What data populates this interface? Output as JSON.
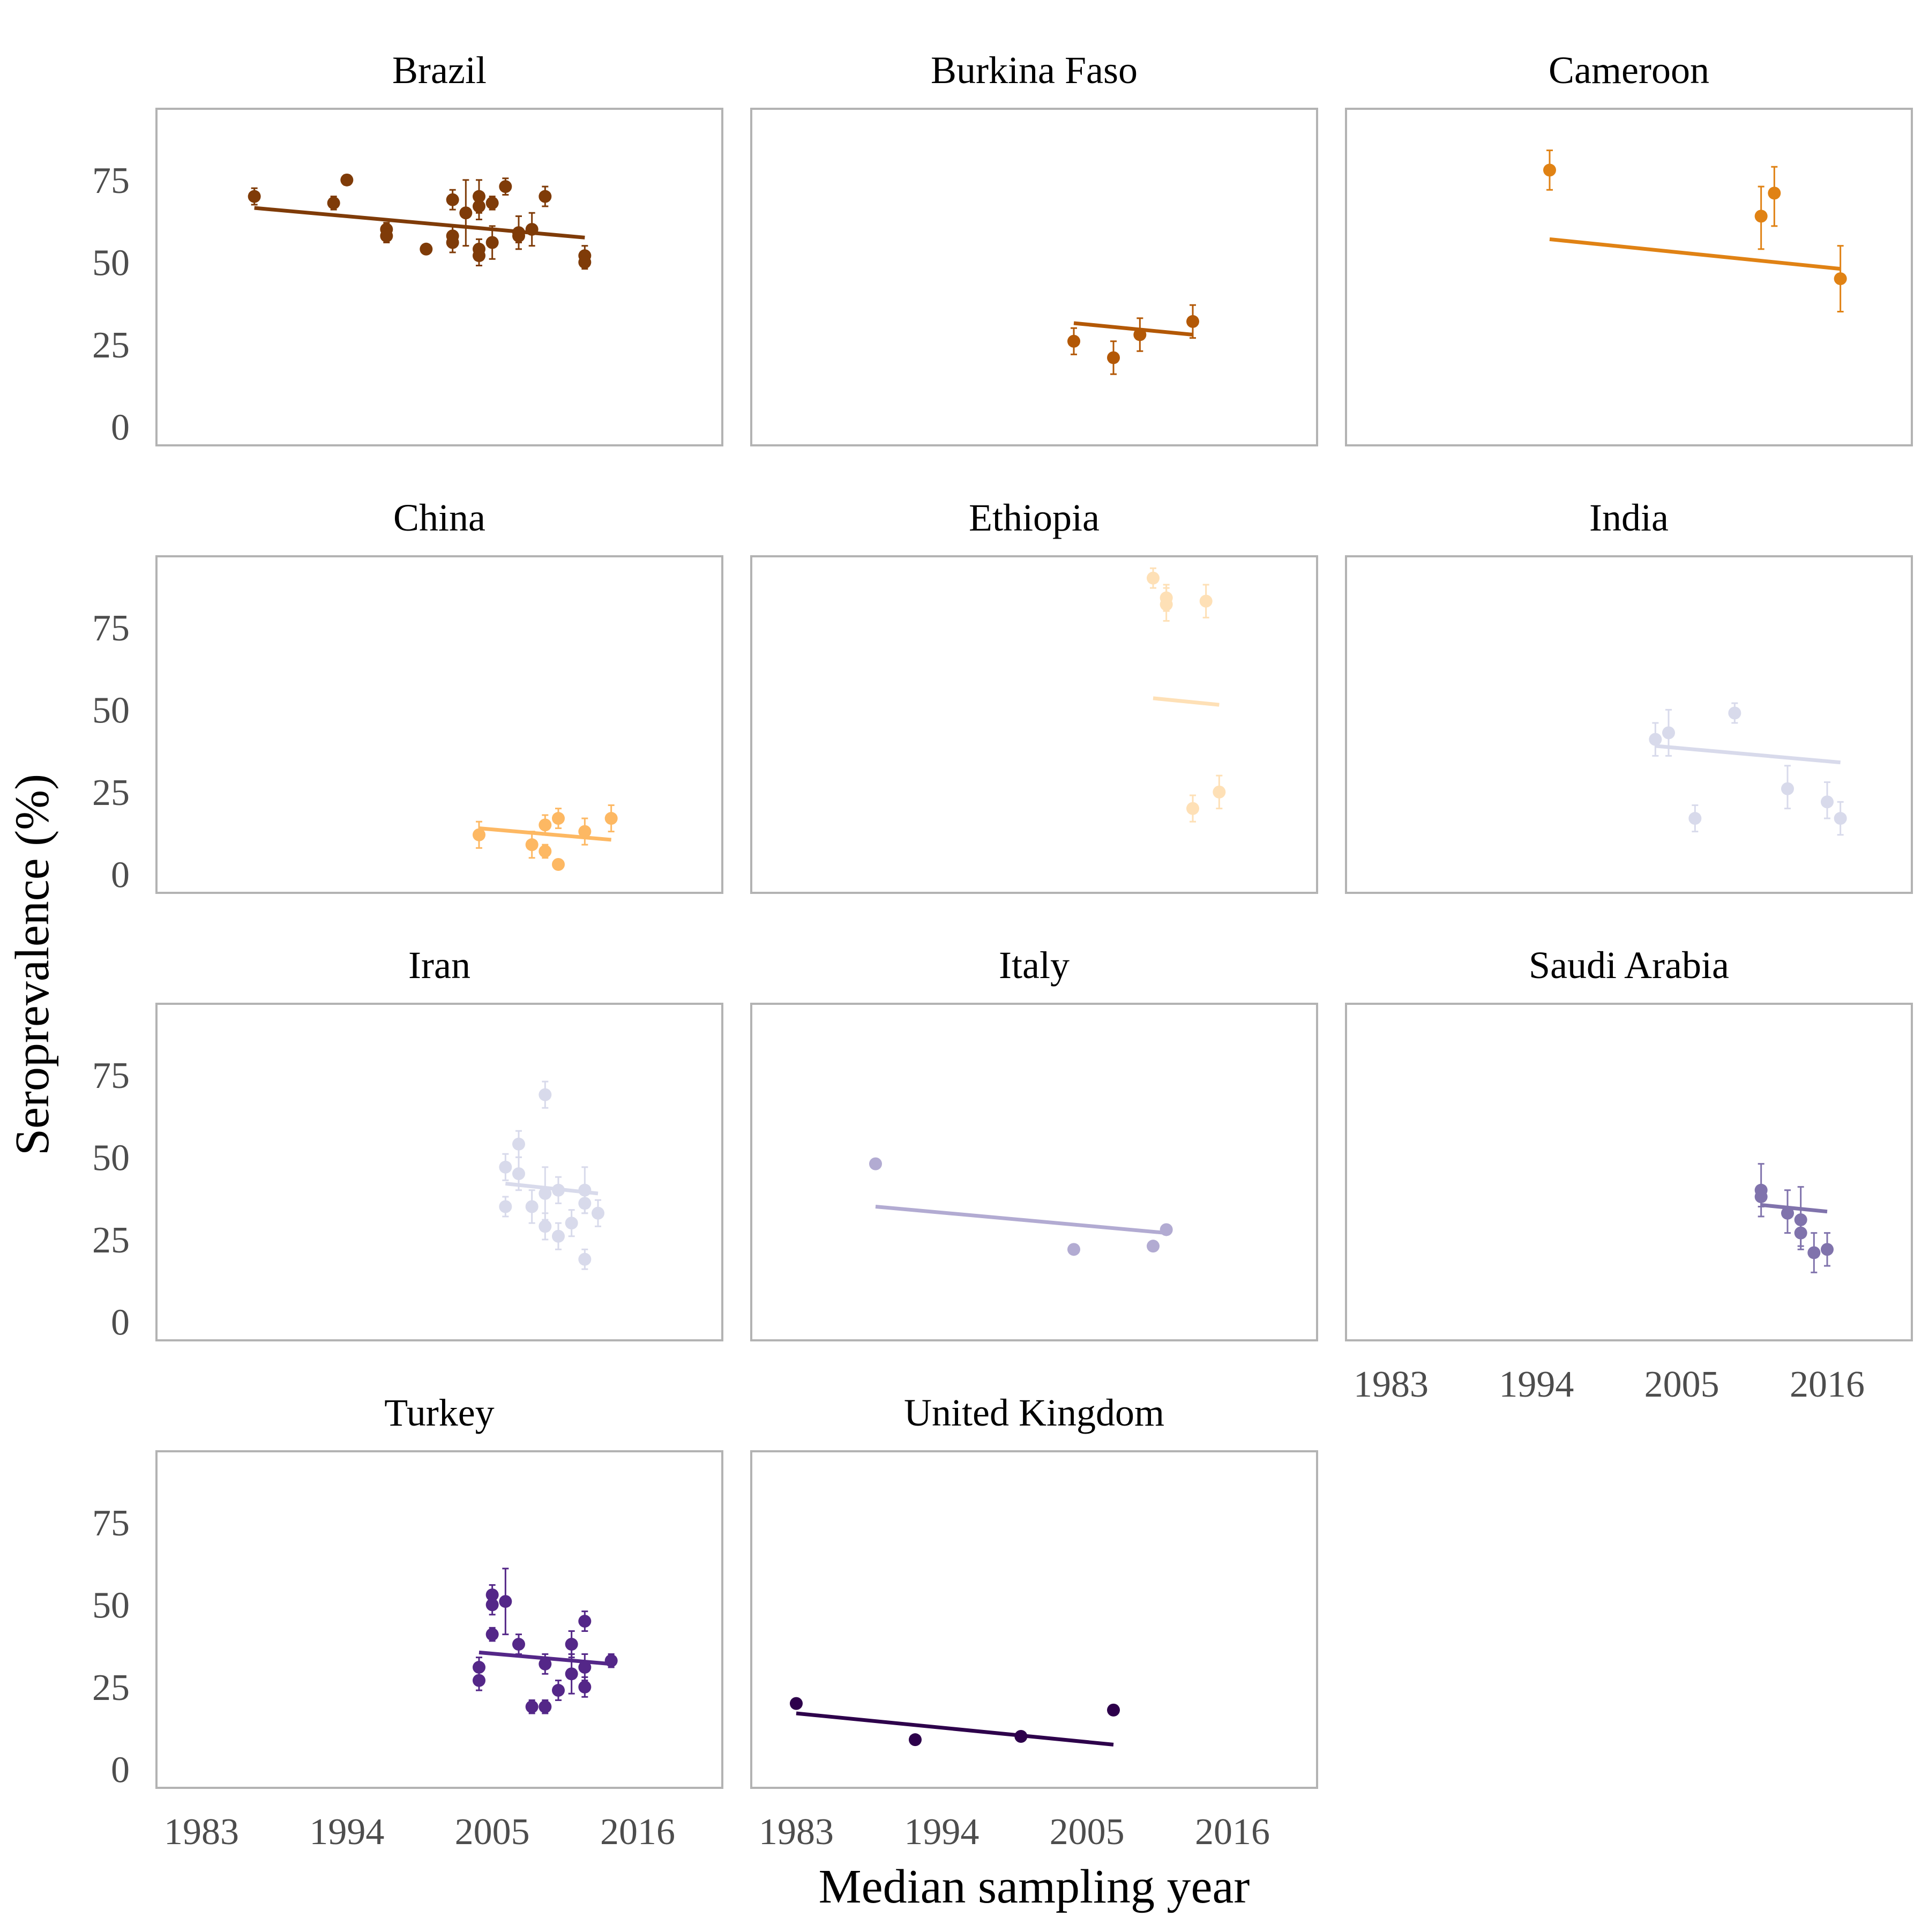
{
  "chart_data": {
    "type": "scatter",
    "xlabel": "Median sampling year",
    "ylabel": "Seroprevalence (%)",
    "x_ticks": [
      1983,
      1994,
      2005,
      2016
    ],
    "y_ticks": [
      0,
      25,
      50,
      75
    ],
    "xlim": [
      1980,
      2022
    ],
    "ylim": [
      -4,
      95
    ],
    "panels": [
      {
        "title": "Brazil",
        "color": "#7f3b08",
        "points": [
          {
            "x": 1987,
            "y": 70,
            "lo": 67.5,
            "hi": 72.5
          },
          {
            "x": 1993,
            "y": 68,
            "lo": 66,
            "hi": 70
          },
          {
            "x": 1994,
            "y": 75,
            "lo": 73.5,
            "hi": 76.5
          },
          {
            "x": 1997,
            "y": 60,
            "lo": 58,
            "hi": 62
          },
          {
            "x": 1997,
            "y": 58,
            "lo": 56,
            "hi": 60
          },
          {
            "x": 2000,
            "y": 54,
            "lo": 53,
            "hi": 55
          },
          {
            "x": 2002,
            "y": 69,
            "lo": 66,
            "hi": 72
          },
          {
            "x": 2002,
            "y": 58,
            "lo": 55,
            "hi": 61
          },
          {
            "x": 2002,
            "y": 56,
            "lo": 53,
            "hi": 59
          },
          {
            "x": 2003,
            "y": 65,
            "lo": 55,
            "hi": 75
          },
          {
            "x": 2004,
            "y": 70,
            "lo": 65,
            "hi": 75
          },
          {
            "x": 2004,
            "y": 67,
            "lo": 63,
            "hi": 71
          },
          {
            "x": 2004,
            "y": 54,
            "lo": 51,
            "hi": 57
          },
          {
            "x": 2004,
            "y": 52,
            "lo": 49,
            "hi": 55
          },
          {
            "x": 2005,
            "y": 68,
            "lo": 66,
            "hi": 70
          },
          {
            "x": 2005,
            "y": 56,
            "lo": 51,
            "hi": 61
          },
          {
            "x": 2006,
            "y": 73,
            "lo": 70.5,
            "hi": 75.5
          },
          {
            "x": 2007,
            "y": 59,
            "lo": 54,
            "hi": 64
          },
          {
            "x": 2007,
            "y": 58,
            "lo": 56,
            "hi": 60
          },
          {
            "x": 2008,
            "y": 60,
            "lo": 55,
            "hi": 65
          },
          {
            "x": 2009,
            "y": 70,
            "lo": 67,
            "hi": 73
          },
          {
            "x": 2012,
            "y": 52,
            "lo": 49,
            "hi": 55
          },
          {
            "x": 2012,
            "y": 50,
            "lo": 48,
            "hi": 52
          }
        ],
        "trend": {
          "x": [
            1987,
            2012
          ],
          "y": [
            66.5,
            57.5
          ]
        }
      },
      {
        "title": "Burkina Faso",
        "color": "#b35806",
        "points": [
          {
            "x": 2004,
            "y": 26,
            "lo": 22,
            "hi": 30
          },
          {
            "x": 2007,
            "y": 21,
            "lo": 16,
            "hi": 26
          },
          {
            "x": 2009,
            "y": 28,
            "lo": 23,
            "hi": 33
          },
          {
            "x": 2013,
            "y": 32,
            "lo": 27,
            "hi": 37
          }
        ],
        "trend": {
          "x": [
            2004,
            2013
          ],
          "y": [
            31.5,
            28
          ]
        }
      },
      {
        "title": "Cameroon",
        "color": "#e08214",
        "points": [
          {
            "x": 1995,
            "y": 78,
            "lo": 72,
            "hi": 84
          },
          {
            "x": 2011,
            "y": 64,
            "lo": 54,
            "hi": 73
          },
          {
            "x": 2012,
            "y": 71,
            "lo": 61,
            "hi": 79
          },
          {
            "x": 2017,
            "y": 45,
            "lo": 35,
            "hi": 55
          }
        ],
        "trend": {
          "x": [
            1995,
            2017
          ],
          "y": [
            57,
            48
          ]
        }
      },
      {
        "title": "China",
        "color": "#fdb863",
        "points": [
          {
            "x": 2004,
            "y": 12,
            "lo": 8,
            "hi": 16
          },
          {
            "x": 2008,
            "y": 9,
            "lo": 5,
            "hi": 13
          },
          {
            "x": 2009,
            "y": 15,
            "lo": 12,
            "hi": 18
          },
          {
            "x": 2009,
            "y": 7,
            "lo": 5,
            "hi": 9
          },
          {
            "x": 2010,
            "y": 17,
            "lo": 14,
            "hi": 20
          },
          {
            "x": 2010,
            "y": 3,
            "lo": 2,
            "hi": 4
          },
          {
            "x": 2012,
            "y": 13,
            "lo": 9,
            "hi": 17
          },
          {
            "x": 2014,
            "y": 17,
            "lo": 13,
            "hi": 21
          }
        ],
        "trend": {
          "x": [
            2004,
            2014
          ],
          "y": [
            14,
            10.5
          ]
        }
      },
      {
        "title": "Ethiopia",
        "color": "#fee0b6",
        "points": [
          {
            "x": 2010,
            "y": 90,
            "lo": 87,
            "hi": 93
          },
          {
            "x": 2011,
            "y": 84,
            "lo": 80,
            "hi": 88
          },
          {
            "x": 2011,
            "y": 82,
            "lo": 77,
            "hi": 87
          },
          {
            "x": 2013,
            "y": 20,
            "lo": 16,
            "hi": 24
          },
          {
            "x": 2014,
            "y": 83,
            "lo": 78,
            "hi": 88
          },
          {
            "x": 2015,
            "y": 25,
            "lo": 20,
            "hi": 30
          }
        ],
        "trend": {
          "x": [
            2010,
            2015
          ],
          "y": [
            53.5,
            51.5
          ]
        }
      },
      {
        "title": "India",
        "color": "#d8daeb",
        "points": [
          {
            "x": 2003,
            "y": 41,
            "lo": 36,
            "hi": 46
          },
          {
            "x": 2004,
            "y": 43,
            "lo": 36,
            "hi": 50
          },
          {
            "x": 2006,
            "y": 17,
            "lo": 13,
            "hi": 21
          },
          {
            "x": 2009,
            "y": 49,
            "lo": 46,
            "hi": 52
          },
          {
            "x": 2013,
            "y": 26,
            "lo": 20,
            "hi": 33
          },
          {
            "x": 2016,
            "y": 22,
            "lo": 17,
            "hi": 28
          },
          {
            "x": 2017,
            "y": 17,
            "lo": 12,
            "hi": 22
          }
        ],
        "trend": {
          "x": [
            2003,
            2017
          ],
          "y": [
            39,
            34
          ]
        }
      },
      {
        "title": "Iran",
        "color": "#d8daeb",
        "points": [
          {
            "x": 2006,
            "y": 47,
            "lo": 43,
            "hi": 51
          },
          {
            "x": 2006,
            "y": 35,
            "lo": 32,
            "hi": 38
          },
          {
            "x": 2007,
            "y": 54,
            "lo": 50,
            "hi": 58
          },
          {
            "x": 2007,
            "y": 45,
            "lo": 40,
            "hi": 50
          },
          {
            "x": 2008,
            "y": 35,
            "lo": 30,
            "hi": 40
          },
          {
            "x": 2009,
            "y": 69,
            "lo": 65,
            "hi": 73
          },
          {
            "x": 2009,
            "y": 39,
            "lo": 31,
            "hi": 47
          },
          {
            "x": 2009,
            "y": 29,
            "lo": 25,
            "hi": 33
          },
          {
            "x": 2010,
            "y": 40,
            "lo": 36,
            "hi": 44
          },
          {
            "x": 2010,
            "y": 26,
            "lo": 22,
            "hi": 30
          },
          {
            "x": 2011,
            "y": 30,
            "lo": 26,
            "hi": 34
          },
          {
            "x": 2012,
            "y": 40,
            "lo": 33,
            "hi": 47
          },
          {
            "x": 2012,
            "y": 36,
            "lo": 33,
            "hi": 39
          },
          {
            "x": 2012,
            "y": 19,
            "lo": 16,
            "hi": 22
          },
          {
            "x": 2013,
            "y": 33,
            "lo": 29,
            "hi": 37
          }
        ],
        "trend": {
          "x": [
            2006,
            2013
          ],
          "y": [
            42,
            39
          ]
        }
      },
      {
        "title": "Italy",
        "color": "#b2abd2",
        "points": [
          {
            "x": 1989,
            "y": 48,
            "lo": 47,
            "hi": 49
          },
          {
            "x": 2004,
            "y": 22,
            "lo": 21,
            "hi": 23
          },
          {
            "x": 2010,
            "y": 23,
            "lo": 22,
            "hi": 24
          },
          {
            "x": 2011,
            "y": 28,
            "lo": 27,
            "hi": 29
          }
        ],
        "trend": {
          "x": [
            1989,
            2011
          ],
          "y": [
            35,
            27
          ]
        }
      },
      {
        "title": "Saudi Arabia",
        "color": "#8073ac",
        "points": [
          {
            "x": 2011,
            "y": 40,
            "lo": 32,
            "hi": 48
          },
          {
            "x": 2011,
            "y": 38,
            "lo": 35,
            "hi": 41
          },
          {
            "x": 2013,
            "y": 33,
            "lo": 27,
            "hi": 40
          },
          {
            "x": 2014,
            "y": 31,
            "lo": 22,
            "hi": 41
          },
          {
            "x": 2014,
            "y": 27,
            "lo": 23,
            "hi": 31
          },
          {
            "x": 2015,
            "y": 21,
            "lo": 15,
            "hi": 27
          },
          {
            "x": 2016,
            "y": 22,
            "lo": 17,
            "hi": 27
          }
        ],
        "trend": {
          "x": [
            2011,
            2016
          ],
          "y": [
            35.5,
            33.5
          ]
        }
      },
      {
        "title": "Turkey",
        "color": "#542788",
        "points": [
          {
            "x": 2004,
            "y": 31,
            "lo": 28,
            "hi": 34
          },
          {
            "x": 2004,
            "y": 27,
            "lo": 24,
            "hi": 30
          },
          {
            "x": 2005,
            "y": 53,
            "lo": 50,
            "hi": 56
          },
          {
            "x": 2005,
            "y": 50,
            "lo": 47,
            "hi": 53
          },
          {
            "x": 2005,
            "y": 41,
            "lo": 39,
            "hi": 43
          },
          {
            "x": 2006,
            "y": 51,
            "lo": 41,
            "hi": 61
          },
          {
            "x": 2007,
            "y": 38,
            "lo": 35,
            "hi": 41
          },
          {
            "x": 2008,
            "y": 19,
            "lo": 17,
            "hi": 21
          },
          {
            "x": 2009,
            "y": 32,
            "lo": 29,
            "hi": 35
          },
          {
            "x": 2009,
            "y": 19,
            "lo": 17,
            "hi": 21
          },
          {
            "x": 2010,
            "y": 24,
            "lo": 21,
            "hi": 27
          },
          {
            "x": 2011,
            "y": 38,
            "lo": 34,
            "hi": 42
          },
          {
            "x": 2011,
            "y": 29,
            "lo": 23,
            "hi": 35
          },
          {
            "x": 2012,
            "y": 45,
            "lo": 42,
            "hi": 48
          },
          {
            "x": 2012,
            "y": 31,
            "lo": 27,
            "hi": 35
          },
          {
            "x": 2012,
            "y": 25,
            "lo": 22,
            "hi": 28
          },
          {
            "x": 2014,
            "y": 33,
            "lo": 31,
            "hi": 35
          }
        ],
        "trend": {
          "x": [
            2004,
            2014
          ],
          "y": [
            35.5,
            32
          ]
        }
      },
      {
        "title": "United Kingdom",
        "color": "#2d004b",
        "points": [
          {
            "x": 1983,
            "y": 20,
            "lo": 19,
            "hi": 21
          },
          {
            "x": 1992,
            "y": 9,
            "lo": 8,
            "hi": 10
          },
          {
            "x": 2000,
            "y": 10,
            "lo": 9,
            "hi": 11
          },
          {
            "x": 2007,
            "y": 18,
            "lo": 17,
            "hi": 19
          }
        ],
        "trend": {
          "x": [
            1983,
            2007
          ],
          "y": [
            17,
            7.5
          ]
        }
      }
    ]
  }
}
